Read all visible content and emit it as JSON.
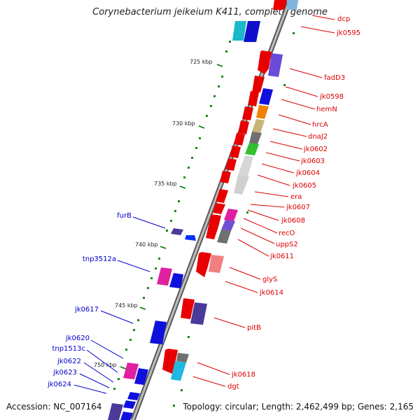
{
  "title": "Corynebacterium jeikeium K411, complete genome",
  "footer": {
    "accession": "Accession: NC_007164",
    "stats": "Topology: circular; Length: 2,462,499 bp; Genes: 2,165"
  },
  "colors": {
    "forward_label": "#dd0000",
    "reverse_label": "#0000cc",
    "backbone": "#888888",
    "ticks": "#118811"
  },
  "scale_labels": [
    "725 kbp",
    "730 kbp",
    "735 kbp",
    "740 kbp",
    "745 kbp",
    "750 kbp"
  ],
  "forward_genes": [
    "dcp",
    "jk0595",
    "fadD3",
    "jk0598",
    "hemN",
    "hrcA",
    "dnaJ2",
    "jk0602",
    "jk0603",
    "jk0604",
    "jk0605",
    "era",
    "jk0607",
    "jk0608",
    "recO",
    "uppS2",
    "jk0611",
    "glyS",
    "jk0614",
    "pitB",
    "jk0618",
    "dgt"
  ],
  "reverse_genes": [
    "furB",
    "tnp3512a",
    "jk0617",
    "jk0620",
    "tnp1513c",
    "jk0622",
    "jk0623",
    "jk0624"
  ]
}
